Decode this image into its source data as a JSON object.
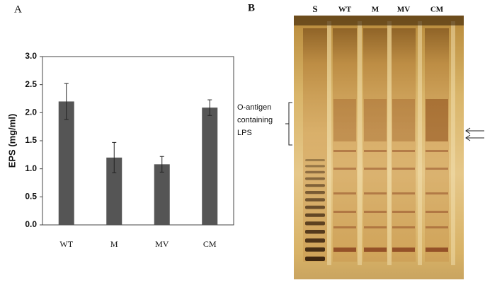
{
  "panel_a_label": "A",
  "chart_data": {
    "type": "bar",
    "ylabel": "EPS (mg/ml)",
    "categories": [
      "WT",
      "M",
      "MV",
      "CM"
    ],
    "values": [
      2.2,
      1.2,
      1.08,
      2.09
    ],
    "errors": [
      0.32,
      0.27,
      0.14,
      0.14
    ],
    "color": "#555555",
    "ylim": [
      0,
      3
    ],
    "yticks": [
      {
        "value": 0,
        "label": "0.0"
      },
      0.5,
      {
        "value": 1,
        "label": "1.0"
      },
      1.5,
      {
        "value": 2,
        "label": "2.0"
      },
      2.5,
      {
        "value": 3,
        "label": "3.0"
      }
    ],
    "grid": false
  },
  "gel": {
    "panel_label": "B",
    "lanes": [
      "S",
      "WT",
      "M",
      "MV",
      "CM"
    ],
    "annotation": [
      "O-antigen",
      "containing",
      "LPS"
    ]
  }
}
